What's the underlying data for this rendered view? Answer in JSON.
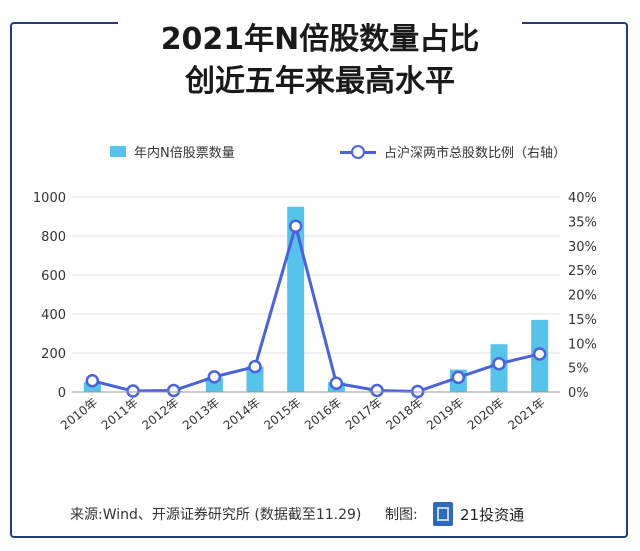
{
  "title": {
    "line1": "2021年N倍股数量占比",
    "line2": "创近五年来最高水平"
  },
  "legend": {
    "bar_label": "年内N倍股票数量",
    "line_label": "占沪深两市总股数比例（右轴）"
  },
  "footer": {
    "source": "来源:Wind、开源证券研究所 (数据截至11.29)",
    "made_by": "制图:",
    "brand": "21投资通"
  },
  "colors": {
    "bar": "#56c3ea",
    "line": "#4a63d8",
    "frame": "#1f3f7a"
  },
  "chart_data": {
    "type": "bar+line",
    "categories": [
      "2010年",
      "2011年",
      "2012年",
      "2013年",
      "2014年",
      "2015年",
      "2016年",
      "2017年",
      "2018年",
      "2019年",
      "2020年",
      "2021年"
    ],
    "series": [
      {
        "name": "年内N倍股票数量",
        "type": "bar",
        "axis": "left",
        "values": [
          50,
          3,
          5,
          75,
          130,
          950,
          50,
          5,
          2,
          115,
          245,
          370
        ]
      },
      {
        "name": "占沪深两市总股数比例（右轴）",
        "type": "line",
        "axis": "right",
        "values": [
          2.3,
          0.2,
          0.3,
          3.1,
          5.2,
          34,
          1.8,
          0.3,
          0.1,
          3.0,
          5.8,
          7.8
        ]
      }
    ],
    "y_left": {
      "min": 0,
      "max": 1000,
      "ticks": [
        "0",
        "200",
        "400",
        "600",
        "800",
        "1000"
      ],
      "tick_values": [
        0,
        200,
        400,
        600,
        800,
        1000
      ]
    },
    "y_right": {
      "min": 0,
      "max": 40,
      "ticks": [
        "0%",
        "5%",
        "10%",
        "15%",
        "20%",
        "25%",
        "30%",
        "35%",
        "40%"
      ],
      "tick_values": [
        0,
        5,
        10,
        15,
        20,
        25,
        30,
        35,
        40
      ]
    },
    "grid": true,
    "legend_position": "top"
  }
}
